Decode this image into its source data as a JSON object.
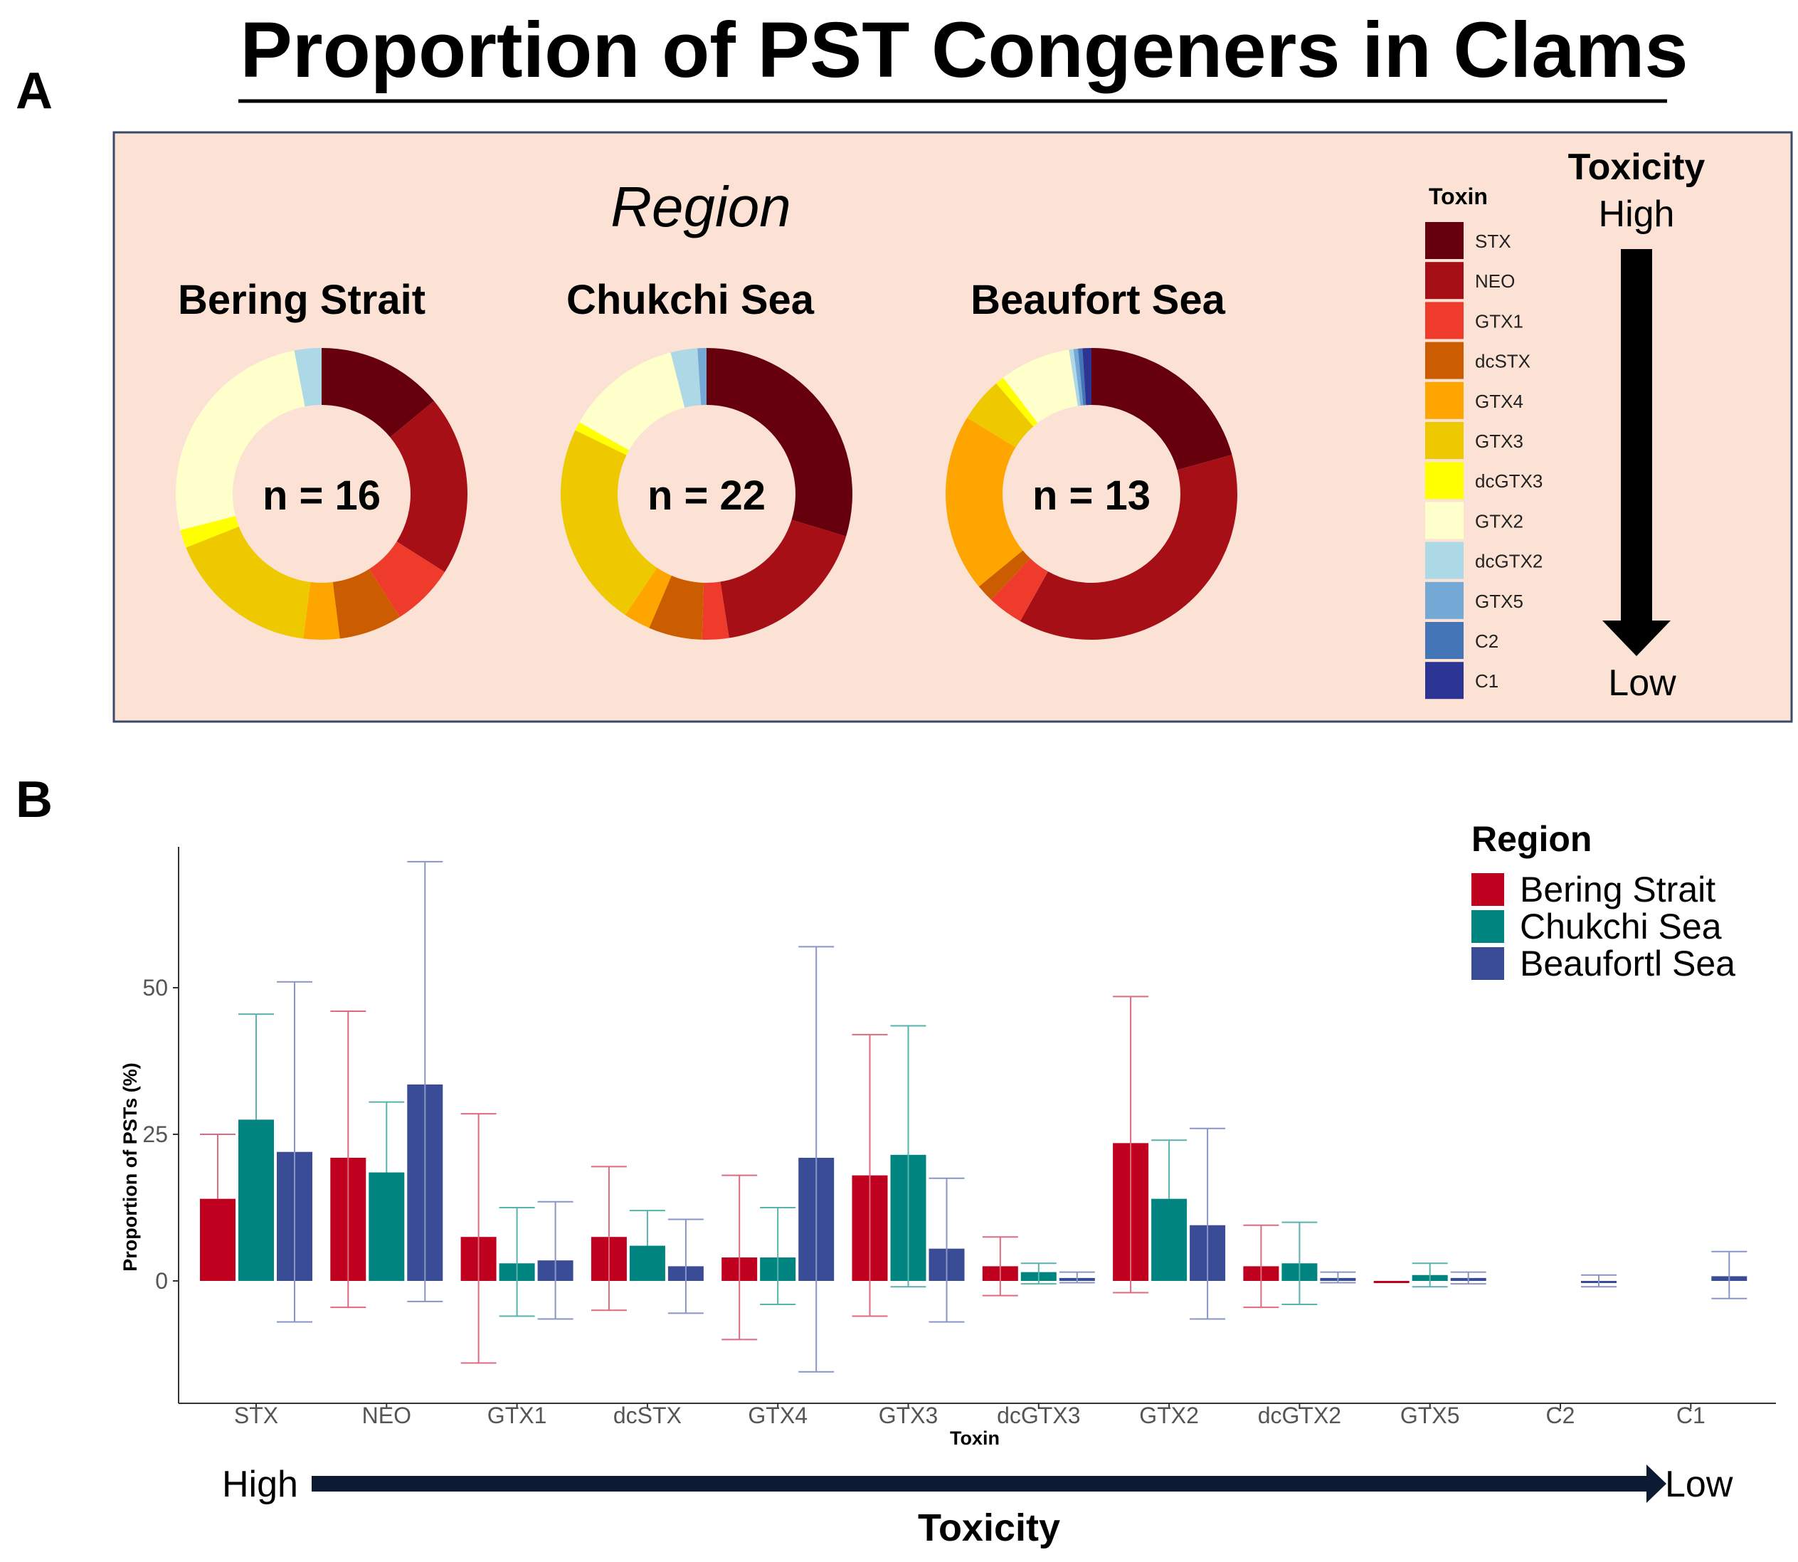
{
  "title": "Proportion of PST Congeners in Clams",
  "panel_a_label": "A",
  "panel_b_label": "B",
  "chart_data": [
    {
      "type": "pie",
      "variant": "donut",
      "super_title": "Region",
      "legend_title": "Toxin",
      "toxins": [
        "STX",
        "NEO",
        "GTX1",
        "dcSTX",
        "GTX4",
        "GTX3",
        "dcGTX3",
        "GTX2",
        "dcGTX2",
        "GTX5",
        "C2",
        "C1"
      ],
      "colors": [
        "#67000d",
        "#a50f15",
        "#ef3b2c",
        "#cc5c00",
        "#fea500",
        "#eec900",
        "#ffff00",
        "#ffffcc",
        "#add8e6",
        "#73a9d4",
        "#4375b7",
        "#2d3594"
      ],
      "toxicity_title": "Toxicity",
      "toxicity_high": "High",
      "toxicity_low": "Low",
      "regions": [
        {
          "name": "Bering Strait",
          "n_label": "n = 16",
          "values": [
            14,
            20,
            7,
            7,
            4,
            17,
            2,
            26,
            3,
            0,
            0,
            0
          ]
        },
        {
          "name": "Chukchi Sea",
          "n_label": "n = 22",
          "values": [
            30,
            18,
            3,
            6,
            3,
            23,
            1,
            13,
            3,
            1,
            0,
            0
          ]
        },
        {
          "name": "Beaufort Sea",
          "n_label": "n = 13",
          "values": [
            21,
            38,
            4,
            2,
            20,
            5,
            1,
            8,
            0.5,
            0.5,
            0.5,
            1
          ]
        }
      ]
    },
    {
      "type": "bar",
      "title": "",
      "xlabel": "Toxin",
      "ylabel": "Proportion of PSTs (%)",
      "ylim": [
        -19,
        75
      ],
      "yticks": [
        0,
        25,
        50
      ],
      "yticks_labels": [
        "0",
        "25",
        "50"
      ],
      "categories": [
        "STX",
        "NEO",
        "GTX1",
        "dcSTX",
        "GTX4",
        "GTX3",
        "dcGTX3",
        "GTX2",
        "dcGTX2",
        "GTX5",
        "C2",
        "C1"
      ],
      "legend_title": "Region",
      "series": [
        {
          "name": "Bering Strait",
          "color": "#c0001f",
          "errcolor": "#dc6b7f",
          "values": [
            14,
            21,
            7.5,
            7.5,
            4,
            18,
            2.5,
            23.5,
            2.5,
            0,
            null,
            null
          ],
          "err_low": [
            null,
            -4.5,
            -14,
            -5,
            -10,
            -6,
            -2.5,
            -2,
            -4.5,
            null,
            null,
            null
          ],
          "err_high": [
            25,
            46,
            28.5,
            19.5,
            18,
            42,
            7.5,
            48.5,
            9.5,
            null,
            null,
            null
          ]
        },
        {
          "name": "Chukchi Sea",
          "color": "#00847f",
          "errcolor": "#58b3ac",
          "values": [
            27.5,
            18.5,
            3,
            6,
            4,
            21.5,
            1.5,
            14,
            3,
            1,
            null,
            null
          ],
          "err_low": [
            null,
            null,
            -6,
            null,
            -4,
            -1,
            -0.5,
            null,
            -4,
            -1,
            null,
            null
          ],
          "err_high": [
            45.5,
            30.5,
            12.5,
            12,
            12.5,
            43.5,
            3,
            24,
            10,
            3,
            null,
            null
          ]
        },
        {
          "name": "Beaufortl Sea",
          "color": "#3b4c96",
          "errcolor": "#8a95c6",
          "values": [
            22,
            33.5,
            3.5,
            2.5,
            21,
            5.5,
            0.5,
            9.5,
            0.5,
            0.5,
            0,
            0.8
          ],
          "err_low": [
            -7,
            -3.5,
            -6.5,
            -5.5,
            -15.5,
            -7,
            -0.3,
            -6.5,
            -0.3,
            -0.5,
            -1,
            -3
          ],
          "err_high": [
            51,
            71.5,
            13.5,
            10.5,
            57,
            17.5,
            1.5,
            26,
            1.5,
            1.5,
            1,
            5
          ]
        }
      ],
      "toxicity_title": "Toxicity",
      "toxicity_high": "High",
      "toxicity_low": "Low"
    }
  ]
}
